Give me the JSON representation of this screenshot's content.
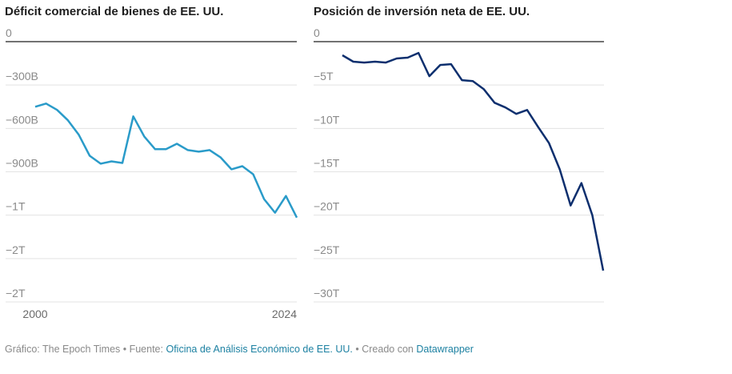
{
  "chart_data": [
    {
      "type": "line",
      "title": "Déficit comercial de bienes de EE. UU.",
      "xlabel": "",
      "ylabel": "",
      "x": [
        2000,
        2001,
        2002,
        2003,
        2004,
        2005,
        2006,
        2007,
        2008,
        2009,
        2010,
        2011,
        2012,
        2013,
        2014,
        2015,
        2016,
        2017,
        2018,
        2019,
        2020,
        2021,
        2022,
        2023,
        2024
      ],
      "series": [
        {
          "name": "Déficit comercial de bienes",
          "color": "#2a9bc9",
          "unit": "billions USD",
          "values": [
            -450,
            -428,
            -472,
            -544,
            -644,
            -789,
            -844,
            -828,
            -839,
            -517,
            -656,
            -744,
            -744,
            -706,
            -750,
            -761,
            -750,
            -800,
            -883,
            -861,
            -917,
            -1089,
            -1183,
            -1067,
            -1217
          ]
        }
      ],
      "ylim": [
        -1800,
        0
      ],
      "yticks": [
        {
          "value": 0,
          "label": "0"
        },
        {
          "value": -300,
          "label": "−300B"
        },
        {
          "value": -600,
          "label": "−600B"
        },
        {
          "value": -900,
          "label": "−900B"
        },
        {
          "value": -1200,
          "label": "−1T"
        },
        {
          "value": -1500,
          "label": "−2T"
        },
        {
          "value": -1800,
          "label": "−2T"
        }
      ],
      "xticks": [
        {
          "value": 2000,
          "label": "2000"
        },
        {
          "value": 2024,
          "label": "2024"
        }
      ],
      "grid": true,
      "legend": "none"
    },
    {
      "type": "line",
      "title": "Posición de inversión neta de EE. UU.",
      "xlabel": "",
      "ylabel": "",
      "x": [
        2000,
        2001,
        2002,
        2003,
        2004,
        2005,
        2006,
        2007,
        2008,
        2009,
        2010,
        2011,
        2012,
        2013,
        2014,
        2015,
        2016,
        2017,
        2018,
        2019,
        2020,
        2021,
        2022,
        2023,
        2024
      ],
      "series": [
        {
          "name": "Posición de inversión neta",
          "color": "#0d2f6e",
          "unit": "trillions USD",
          "values": [
            -1.57,
            -2.31,
            -2.41,
            -2.31,
            -2.41,
            -1.94,
            -1.85,
            -1.3,
            -3.98,
            -2.69,
            -2.59,
            -4.44,
            -4.54,
            -5.46,
            -7.04,
            -7.59,
            -8.33,
            -7.87,
            -9.81,
            -11.67,
            -14.72,
            -18.89,
            -16.3,
            -20.0,
            -26.39
          ]
        }
      ],
      "ylim": [
        -30,
        0
      ],
      "yticks": [
        {
          "value": 0,
          "label": "0"
        },
        {
          "value": -5,
          "label": "−5T"
        },
        {
          "value": -10,
          "label": "−10T"
        },
        {
          "value": -15,
          "label": "−15T"
        },
        {
          "value": -20,
          "label": "−20T"
        },
        {
          "value": -25,
          "label": "−25T"
        },
        {
          "value": -30,
          "label": "−30T"
        }
      ],
      "xticks": [],
      "grid": true,
      "legend": "none"
    }
  ],
  "footer": {
    "prefix": "Gráfico: The Epoch Times • Fuente: ",
    "source_link": "Oficina de Análisis Económico de EE. UU.",
    "middle": " • Creado con ",
    "tool_link": "Datawrapper"
  }
}
